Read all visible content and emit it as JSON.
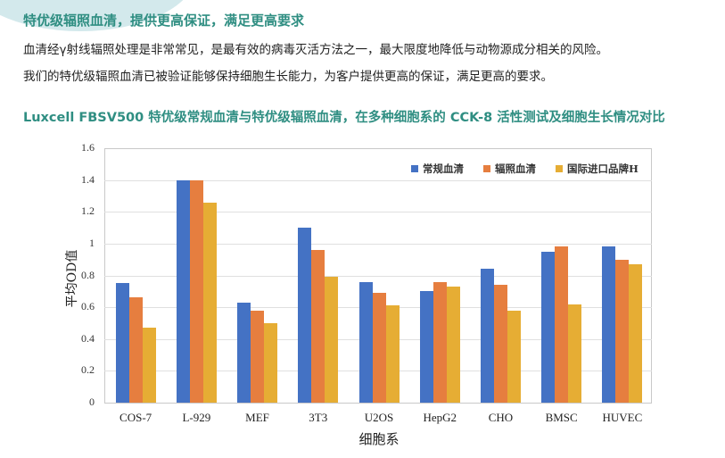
{
  "header": {
    "title": "特优级辐照血清，提供更高保证，满足更高要求",
    "paragraphs": [
      "血清经γ射线辐照处理是非常常见，是最有效的病毒灭活方法之一，最大限度地降低与动物源成分相关的风险。",
      "我们的特优级辐照血清已被验证能够保持细胞生长能力，为客户提供更高的保证，满足更高的要求。"
    ]
  },
  "chart_section": {
    "heading": "Luxcell FBSV500 特优级常规血清与特优级辐照血清，在多种细胞系的 CCK-8 活性测试及细胞生长情况对比"
  },
  "colors": {
    "series_blue": "#4472c4",
    "series_orange": "#e67e3f",
    "series_yellow": "#e6ad34",
    "heading_green": "#2f8e82"
  },
  "chart_data": {
    "type": "bar",
    "title": "Luxcell FBSV500 特优级常规血清与特优级辐照血清，在多种细胞系的 CCK-8 活性测试及细胞生长情况对比",
    "xlabel": "细胞系",
    "ylabel": "平均OD值",
    "ylim": [
      0,
      1.6
    ],
    "yticks": [
      "0",
      "0.2",
      "0.4",
      "0.6",
      "0.8",
      "1",
      "1.2",
      "1.4",
      "1.6"
    ],
    "grid": true,
    "legend_position": "top-right inside",
    "categories": [
      "COS-7",
      "L-929",
      "MEF",
      "3T3",
      "U2OS",
      "HepG2",
      "CHO",
      "BMSC",
      "HUVEC"
    ],
    "series": [
      {
        "name": "常规血清",
        "color": "#4472c4",
        "values": [
          0.75,
          1.4,
          0.63,
          1.1,
          0.76,
          0.7,
          0.84,
          0.95,
          0.98
        ]
      },
      {
        "name": "辐照血清",
        "color": "#e67e3f",
        "values": [
          0.66,
          1.4,
          0.58,
          0.96,
          0.69,
          0.76,
          0.74,
          0.98,
          0.9
        ]
      },
      {
        "name": "国际进口品牌H",
        "color": "#e6ad34",
        "values": [
          0.47,
          1.26,
          0.5,
          0.79,
          0.61,
          0.73,
          0.58,
          0.62,
          0.87
        ]
      }
    ]
  }
}
